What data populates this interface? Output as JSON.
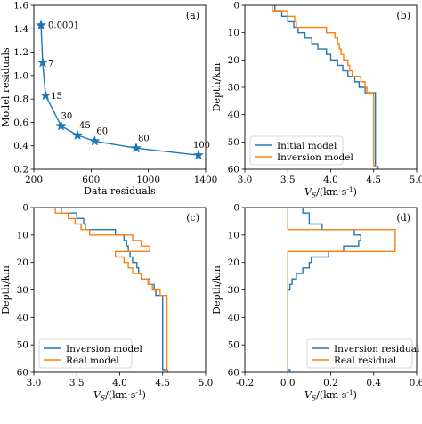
{
  "colors": {
    "blue": "#1f77b4",
    "orange": "#ff7f0e"
  },
  "chart_data": [
    {
      "id": "a",
      "panel_label": "(a)",
      "type": "line",
      "xlabel": "Data residuals",
      "ylabel": "Model residuals",
      "xlim": [
        200,
        1400
      ],
      "ylim": [
        0.2,
        1.6
      ],
      "xticks": [
        200,
        600,
        1000,
        1400
      ],
      "yticks": [
        0.2,
        0.4,
        0.6,
        0.8,
        1.0,
        1.2,
        1.4,
        1.6
      ],
      "xticklabels": [
        "200",
        "600",
        "1000",
        "1400"
      ],
      "yticklabels": [
        "0.2",
        "0.4",
        "0.6",
        "0.8",
        "1.0",
        "1.2",
        "1.4",
        "1.6"
      ],
      "series": [
        {
          "color": "#1f77b4",
          "marker": "star",
          "x": [
            250,
            262,
            282,
            390,
            505,
            625,
            915,
            1350
          ],
          "y": [
            1.43,
            1.11,
            0.83,
            0.57,
            0.49,
            0.44,
            0.38,
            0.32
          ],
          "point_labels": [
            "0.0001",
            "7",
            "15",
            "30",
            "45",
            "60",
            "80",
            "100"
          ]
        }
      ]
    },
    {
      "id": "b",
      "panel_label": "(b)",
      "type": "line",
      "xlabel_main": "V",
      "xlabel_sub": "S",
      "xlabel_unit": "/(km·s",
      "xlabel_sup": "-1",
      "xlabel_end": ")",
      "ylabel": "Depth/km",
      "xlim": [
        3.0,
        5.0
      ],
      "ylim": [
        60,
        0
      ],
      "xticks": [
        3.0,
        3.5,
        4.0,
        4.5,
        5.0
      ],
      "yticks": [
        0,
        10,
        20,
        30,
        40,
        50,
        60
      ],
      "xticklabels": [
        "3.0",
        "3.5",
        "4.0",
        "4.5",
        "5.0"
      ],
      "yticklabels": [
        "0",
        "10",
        "20",
        "30",
        "40",
        "50",
        "60"
      ],
      "legend": {
        "placement": "lower-left",
        "entries": [
          "Initial model",
          "Inversion model"
        ]
      },
      "series": [
        {
          "name": "Initial model",
          "color": "#1f77b4",
          "depth_tops": [
            0,
            2,
            4,
            6,
            8,
            10,
            12,
            14,
            16,
            18,
            20,
            22,
            24,
            26,
            28,
            30,
            32,
            59
          ],
          "vs": [
            3.35,
            3.43,
            3.5,
            3.57,
            3.62,
            3.7,
            3.78,
            3.85,
            3.95,
            4.0,
            4.08,
            4.14,
            4.2,
            4.28,
            4.33,
            4.4,
            4.52,
            4.55
          ],
          "bottom": 60
        },
        {
          "name": "Inversion model",
          "color": "#ff7f0e",
          "depth_tops": [
            0,
            2,
            4,
            6,
            8,
            10,
            12,
            14,
            16,
            18,
            20,
            22,
            24,
            26,
            28,
            30,
            32,
            59
          ],
          "vs": [
            3.32,
            3.5,
            3.58,
            3.6,
            3.95,
            4.05,
            4.08,
            4.1,
            4.12,
            4.15,
            4.2,
            4.22,
            4.25,
            4.35,
            4.4,
            4.42,
            4.5,
            4.54
          ],
          "bottom": 60
        }
      ]
    },
    {
      "id": "c",
      "panel_label": "(c)",
      "type": "line",
      "xlabel_main": "V",
      "xlabel_sub": "S",
      "xlabel_unit": "/(km·s",
      "xlabel_sup": "-1",
      "xlabel_end": ")",
      "ylabel": "Depth/km",
      "xlim": [
        3.0,
        5.0
      ],
      "ylim": [
        60,
        0
      ],
      "xticks": [
        3.0,
        3.5,
        4.0,
        4.5,
        5.0
      ],
      "yticks": [
        0,
        10,
        20,
        30,
        40,
        50,
        60
      ],
      "xticklabels": [
        "3.0",
        "3.5",
        "4.0",
        "4.5",
        "5.0"
      ],
      "yticklabels": [
        "0",
        "10",
        "20",
        "30",
        "40",
        "50",
        "60"
      ],
      "legend": {
        "placement": "lower-left",
        "entries": [
          "Inversion model",
          "Real model"
        ]
      },
      "series": [
        {
          "name": "Inversion model",
          "color": "#1f77b4",
          "depth_tops": [
            0,
            2,
            4,
            6,
            8,
            10,
            12,
            14,
            16,
            18,
            20,
            22,
            24,
            26,
            28,
            30,
            32,
            59
          ],
          "vs": [
            3.32,
            3.5,
            3.58,
            3.6,
            3.95,
            4.05,
            4.08,
            4.1,
            4.12,
            4.15,
            4.2,
            4.22,
            4.25,
            4.35,
            4.4,
            4.42,
            4.5,
            4.54
          ],
          "bottom": 60
        },
        {
          "name": "Real model",
          "color": "#ff7f0e",
          "depth_tops": [
            0,
            2,
            4,
            6,
            8,
            10,
            12,
            14,
            16,
            18,
            20,
            22,
            24,
            26,
            28,
            30,
            32,
            59
          ],
          "vs": [
            3.25,
            3.4,
            3.48,
            3.55,
            3.65,
            4.15,
            4.25,
            4.35,
            3.95,
            4.05,
            4.1,
            4.15,
            4.25,
            4.33,
            4.38,
            4.47,
            4.55,
            4.56
          ],
          "bottom": 60
        }
      ]
    },
    {
      "id": "d",
      "panel_label": "(d)",
      "type": "line",
      "xlabel_main": "V",
      "xlabel_sub": "S",
      "xlabel_unit": "/(km·s",
      "xlabel_sup": "-1",
      "xlabel_end": ")",
      "ylabel": "Depth/km",
      "xlim": [
        -0.2,
        0.6
      ],
      "ylim": [
        60,
        0
      ],
      "xticks": [
        -0.2,
        0.0,
        0.2,
        0.4,
        0.6
      ],
      "yticks": [
        0,
        10,
        20,
        30,
        40,
        50,
        60
      ],
      "xticklabels": [
        "-0.2",
        "0.0",
        "0.2",
        "0.4",
        "0.6"
      ],
      "yticklabels": [
        "0",
        "10",
        "20",
        "30",
        "40",
        "50",
        "60"
      ],
      "legend": {
        "placement": "lower-right",
        "entries": [
          "Inversion residual",
          "Real residual"
        ]
      },
      "series": [
        {
          "name": "Inversion residual",
          "color": "#1f77b4",
          "depth_tops": [
            0,
            2,
            4,
            6,
            8,
            10,
            12,
            14,
            16,
            18,
            20,
            22,
            24,
            26,
            28,
            30,
            32,
            59
          ],
          "vs": [
            0.07,
            0.1,
            0.1,
            0.16,
            0.31,
            0.34,
            0.33,
            0.26,
            0.19,
            0.11,
            0.1,
            0.07,
            0.04,
            0.02,
            0.01,
            0.0,
            0.0,
            0.01
          ],
          "bottom": 60
        },
        {
          "name": "Real residual",
          "color": "#ff7f0e",
          "depth_tops": [
            0,
            8,
            16,
            60
          ],
          "vs": [
            0.0,
            0.5,
            0.0,
            0.0
          ],
          "bottom": 60
        }
      ]
    }
  ]
}
